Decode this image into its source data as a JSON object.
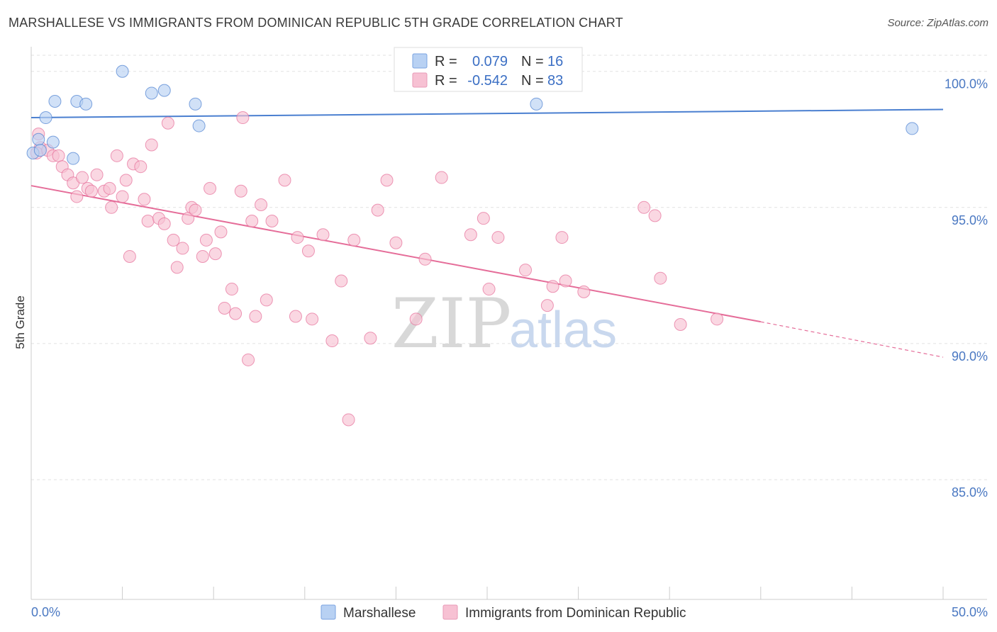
{
  "title": "MARSHALLESE VS IMMIGRANTS FROM DOMINICAN REPUBLIC 5TH GRADE CORRELATION CHART",
  "source": "Source: ZipAtlas.com",
  "colors": {
    "blue": "#4a7fd0",
    "blue_fill": "#b8d1f3",
    "pink": "#e56d99",
    "pink_fill": "#f7c1d3",
    "axis_text": "#4a78c2"
  },
  "watermark": {
    "zip": "ZIP",
    "atlas": "atlas"
  },
  "legend": {
    "rows": [
      {
        "r_label": "R =",
        "r_value": "0.079",
        "n_label": "N =",
        "n_value": "16"
      },
      {
        "r_label": "R =",
        "r_value": "-0.542",
        "n_label": "N =",
        "n_value": "83"
      }
    ]
  },
  "chart_data": {
    "type": "scatter",
    "title": "MARSHALLESE VS IMMIGRANTS FROM DOMINICAN REPUBLIC 5TH GRADE CORRELATION CHART",
    "xlabel": "",
    "ylabel": "5th Grade",
    "xlim": [
      0,
      50
    ],
    "ylim": [
      80.6,
      100.8
    ],
    "x_tick_labels": [
      "0.0%",
      "50.0%"
    ],
    "y_ticks": [
      100,
      95,
      90,
      85
    ],
    "y_tick_labels": [
      "100.0%",
      "95.0%",
      "90.0%",
      "85.0%"
    ],
    "legend_position": "top-center",
    "series": [
      {
        "name": "Marshallese",
        "color": "#4a7fd0",
        "fill": "#b8d1f3",
        "points": [
          [
            0.1,
            97.0
          ],
          [
            0.4,
            97.5
          ],
          [
            0.8,
            98.3
          ],
          [
            1.2,
            97.4
          ],
          [
            2.3,
            96.8
          ],
          [
            1.3,
            98.9
          ],
          [
            2.5,
            98.9
          ],
          [
            3.0,
            98.8
          ],
          [
            5.0,
            100.0
          ],
          [
            6.6,
            99.2
          ],
          [
            7.3,
            99.3
          ],
          [
            9.0,
            98.8
          ],
          [
            9.2,
            98.0
          ],
          [
            27.7,
            98.8
          ],
          [
            48.3,
            97.9
          ],
          [
            0.5,
            97.1
          ]
        ],
        "trend": {
          "x": [
            0,
            50
          ],
          "y": [
            98.3,
            98.6
          ]
        }
      },
      {
        "name": "Immigrants from Dominican Republic",
        "color": "#e56d99",
        "fill": "#f7c1d3",
        "points": [
          [
            0.4,
            97.7
          ],
          [
            0.5,
            97.2
          ],
          [
            0.3,
            97.0
          ],
          [
            0.9,
            97.1
          ],
          [
            1.2,
            96.9
          ],
          [
            1.5,
            96.9
          ],
          [
            1.7,
            96.5
          ],
          [
            2.0,
            96.2
          ],
          [
            2.3,
            95.9
          ],
          [
            2.5,
            95.4
          ],
          [
            2.8,
            96.1
          ],
          [
            3.1,
            95.7
          ],
          [
            3.3,
            95.6
          ],
          [
            3.6,
            96.2
          ],
          [
            4.0,
            95.6
          ],
          [
            4.3,
            95.7
          ],
          [
            4.4,
            95.0
          ],
          [
            4.7,
            96.9
          ],
          [
            5.0,
            95.4
          ],
          [
            5.2,
            96.0
          ],
          [
            5.4,
            93.2
          ],
          [
            5.6,
            96.6
          ],
          [
            6.0,
            96.5
          ],
          [
            6.2,
            95.3
          ],
          [
            6.4,
            94.5
          ],
          [
            6.6,
            97.3
          ],
          [
            7.0,
            94.6
          ],
          [
            7.3,
            94.4
          ],
          [
            7.5,
            98.1
          ],
          [
            7.8,
            93.8
          ],
          [
            8.0,
            92.8
          ],
          [
            8.3,
            93.5
          ],
          [
            8.6,
            94.6
          ],
          [
            8.8,
            95.0
          ],
          [
            9.0,
            94.9
          ],
          [
            9.4,
            93.2
          ],
          [
            9.6,
            93.8
          ],
          [
            9.8,
            95.7
          ],
          [
            10.1,
            93.3
          ],
          [
            10.4,
            94.1
          ],
          [
            10.6,
            91.3
          ],
          [
            11.0,
            92.0
          ],
          [
            11.2,
            91.1
          ],
          [
            11.5,
            95.6
          ],
          [
            11.6,
            98.3
          ],
          [
            11.9,
            89.4
          ],
          [
            12.1,
            94.5
          ],
          [
            12.3,
            91.0
          ],
          [
            12.6,
            95.1
          ],
          [
            12.9,
            91.6
          ],
          [
            13.2,
            94.5
          ],
          [
            13.9,
            96.0
          ],
          [
            14.5,
            91.0
          ],
          [
            14.6,
            93.9
          ],
          [
            15.2,
            93.4
          ],
          [
            15.4,
            90.9
          ],
          [
            16.0,
            94.0
          ],
          [
            16.5,
            90.1
          ],
          [
            17.0,
            92.3
          ],
          [
            17.4,
            87.2
          ],
          [
            17.7,
            93.8
          ],
          [
            18.6,
            90.2
          ],
          [
            19.0,
            94.9
          ],
          [
            19.5,
            96.0
          ],
          [
            20.0,
            93.7
          ],
          [
            21.1,
            90.9
          ],
          [
            21.6,
            93.1
          ],
          [
            22.5,
            96.1
          ],
          [
            24.1,
            94.0
          ],
          [
            24.8,
            94.6
          ],
          [
            25.1,
            92.0
          ],
          [
            25.6,
            93.9
          ],
          [
            27.1,
            92.7
          ],
          [
            28.3,
            91.4
          ],
          [
            28.6,
            92.1
          ],
          [
            29.1,
            93.9
          ],
          [
            29.3,
            92.3
          ],
          [
            30.3,
            91.9
          ],
          [
            33.6,
            95.0
          ],
          [
            34.2,
            94.7
          ],
          [
            34.5,
            92.4
          ],
          [
            35.6,
            90.7
          ],
          [
            37.6,
            90.9
          ]
        ],
        "trend": {
          "x": [
            0,
            40
          ],
          "y": [
            95.8,
            90.8
          ]
        },
        "trend_dashed": {
          "x": [
            40,
            50
          ],
          "y": [
            90.8,
            89.5
          ]
        }
      }
    ]
  }
}
